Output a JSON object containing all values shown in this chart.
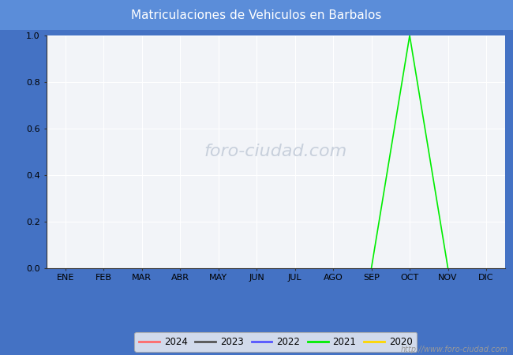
{
  "title": "Matriculaciones de Vehiculos en Barbalos",
  "title_bg_color": "#5B8DD9",
  "title_text_color": "#FFFFFF",
  "months": [
    "ENE",
    "FEB",
    "MAR",
    "ABR",
    "MAY",
    "JUN",
    "JUL",
    "AGO",
    "SEP",
    "OCT",
    "NOV",
    "DIC"
  ],
  "ylim": [
    0.0,
    1.0
  ],
  "yticks": [
    0.0,
    0.2,
    0.4,
    0.6,
    0.8,
    1.0
  ],
  "series": [
    {
      "year": "2024",
      "color": "#FF6B6B",
      "data": [
        null,
        null,
        null,
        null,
        null,
        null,
        null,
        null,
        null,
        null,
        null,
        null
      ]
    },
    {
      "year": "2023",
      "color": "#555555",
      "data": [
        null,
        null,
        null,
        null,
        null,
        null,
        null,
        null,
        null,
        null,
        null,
        null
      ]
    },
    {
      "year": "2022",
      "color": "#5555FF",
      "data": [
        null,
        null,
        null,
        null,
        null,
        null,
        null,
        null,
        null,
        null,
        null,
        null
      ]
    },
    {
      "year": "2021",
      "color": "#00EE00",
      "data": [
        null,
        null,
        null,
        null,
        null,
        null,
        null,
        null,
        0.0,
        1.0,
        0.0,
        null
      ]
    },
    {
      "year": "2020",
      "color": "#FFD700",
      "data": [
        null,
        null,
        null,
        null,
        null,
        null,
        null,
        null,
        null,
        null,
        null,
        null
      ]
    }
  ],
  "plot_bg_color": "#F2F4F8",
  "grid_color": "#FFFFFF",
  "watermark_text": "foro-ciudad.com",
  "watermark_color": "#C8D0DC",
  "url_text": "http://www.foro-ciudad.com",
  "url_color": "#999999",
  "legend_bg": "#F5F5F5",
  "legend_border": "#AAAAAA",
  "fig_border_color": "#4472C4",
  "title_fontsize": 11,
  "tick_fontsize": 8,
  "watermark_fontsize": 16
}
